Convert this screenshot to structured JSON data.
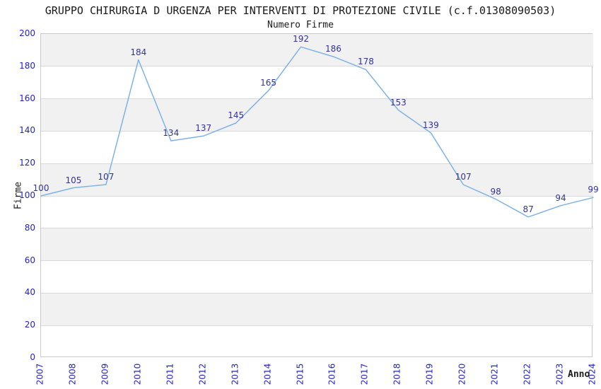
{
  "chart_data": {
    "type": "line",
    "title": "GRUPPO CHIRURGIA D URGENZA PER INTERVENTI DI PROTEZIONE CIVILE (c.f.01308090503)",
    "subtitle": "Numero Firme",
    "xlabel": "Anno",
    "ylabel": "Firme",
    "categories": [
      "2007",
      "2008",
      "2009",
      "2010",
      "2011",
      "2012",
      "2013",
      "2014",
      "2015",
      "2016",
      "2017",
      "2018",
      "2019",
      "2020",
      "2021",
      "2022",
      "2023",
      "2024"
    ],
    "values": [
      100,
      105,
      107,
      184,
      134,
      137,
      145,
      165,
      192,
      186,
      178,
      153,
      139,
      107,
      98,
      87,
      94,
      99
    ],
    "ylim": [
      0,
      200
    ],
    "ytick_step": 20,
    "legend": "none",
    "grid": "horizontal gridlines with alternating shaded bands",
    "data_labels_shown": true,
    "colors": {
      "line": "#7fb2e6",
      "tick_label": "#2222cc",
      "data_label": "#333399",
      "band": "#f1f1f1",
      "gridline": "#dadada",
      "plot_border": "#c9c9c9",
      "title_text": "#1a1a1a"
    }
  }
}
